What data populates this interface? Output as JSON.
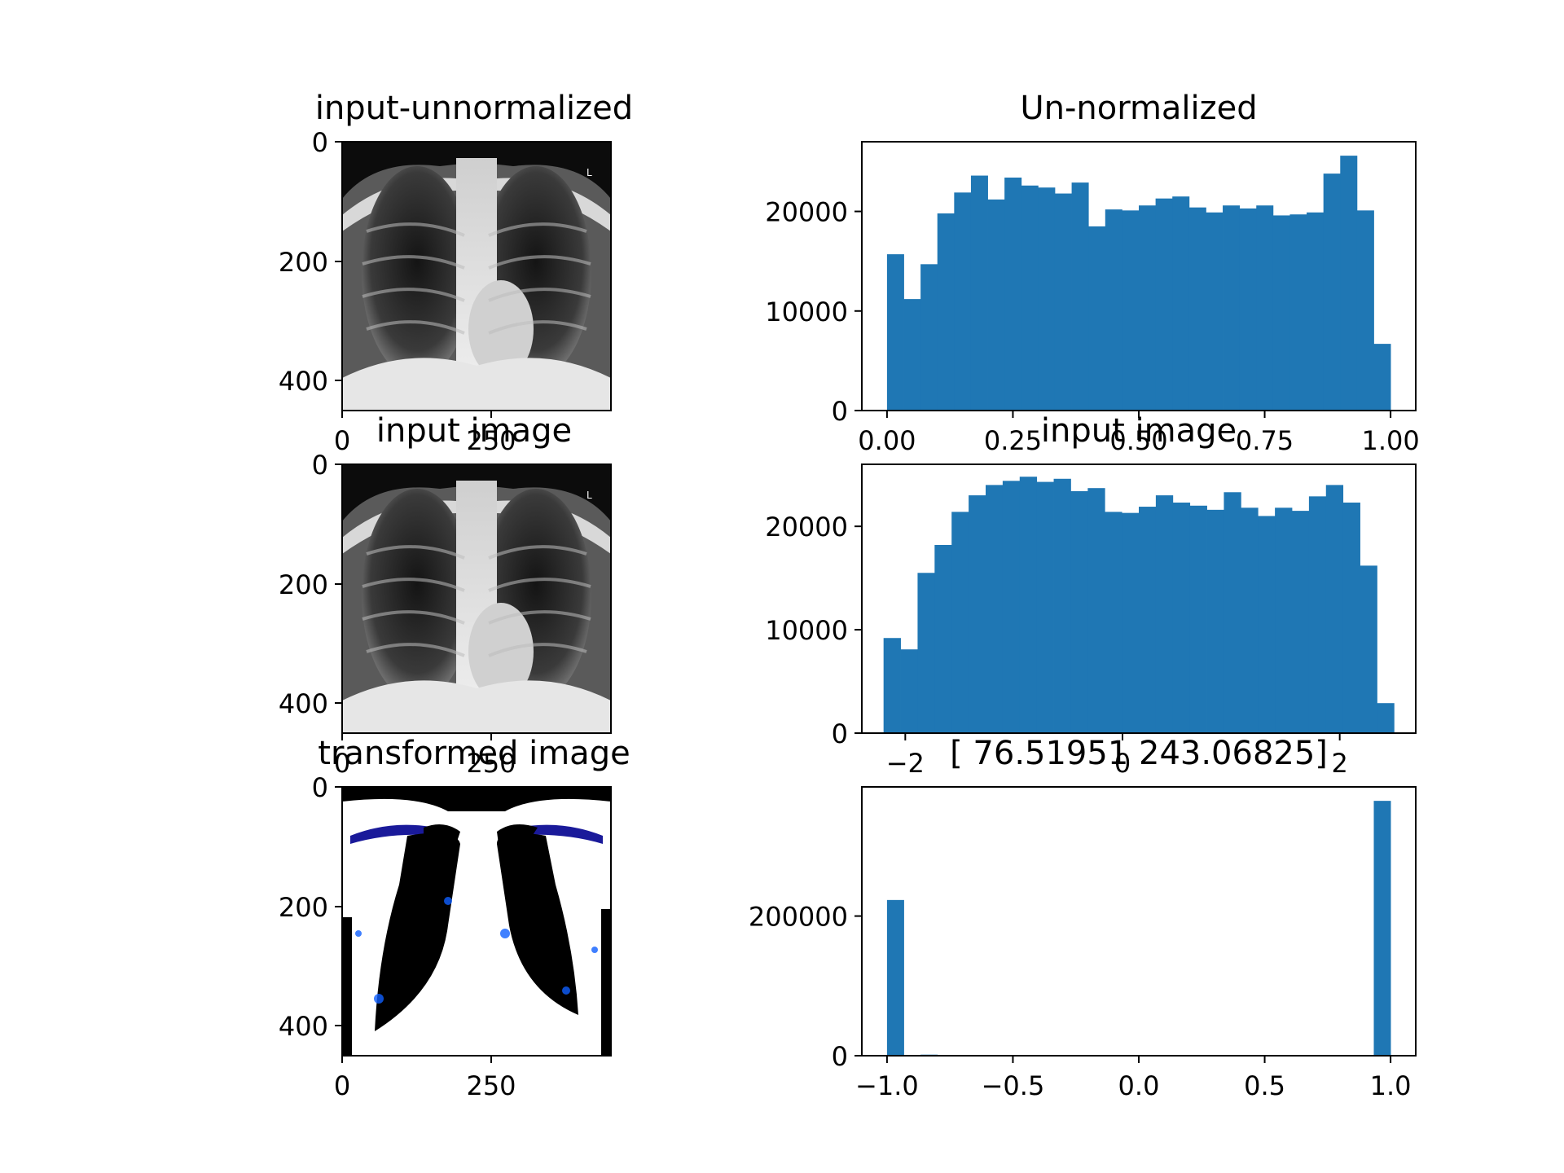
{
  "figure": {
    "bar_color": "#1f77b4"
  },
  "chart_data": [
    {
      "type": "image",
      "title": "input-unnormalized",
      "image": "chest-xray-grayscale",
      "xlim": [
        0,
        450
      ],
      "ylim": [
        450,
        0
      ],
      "xticks": [
        0,
        250
      ],
      "yticks": [
        0,
        200,
        400
      ],
      "xtick_labels": [
        "0",
        "250"
      ],
      "ytick_labels": [
        "0",
        "200",
        "400"
      ]
    },
    {
      "type": "bar",
      "title": "Un-normalized",
      "xlim": [
        -0.05,
        1.05
      ],
      "ylim": [
        0,
        27000
      ],
      "xticks": [
        0.0,
        0.25,
        0.5,
        0.75,
        1.0
      ],
      "xtick_labels": [
        "0.00",
        "0.25",
        "0.50",
        "0.75",
        "1.00"
      ],
      "yticks": [
        0,
        10000,
        20000
      ],
      "ytick_labels": [
        "0",
        "10000",
        "20000"
      ],
      "bin_range": [
        0,
        1
      ],
      "values": [
        15700,
        11200,
        14700,
        19800,
        21900,
        23600,
        21200,
        23400,
        22600,
        22400,
        21800,
        22900,
        18500,
        20200,
        20100,
        20600,
        21300,
        21500,
        20400,
        19900,
        20600,
        20300,
        20600,
        19600,
        19700,
        19900,
        23800,
        25600,
        20100,
        6700
      ]
    },
    {
      "type": "image",
      "title": "input image",
      "image": "chest-xray-grayscale",
      "xlim": [
        0,
        450
      ],
      "ylim": [
        450,
        0
      ],
      "xticks": [
        0,
        250
      ],
      "yticks": [
        0,
        200,
        400
      ],
      "xtick_labels": [
        "0",
        "250"
      ],
      "ytick_labels": [
        "0",
        "200",
        "400"
      ]
    },
    {
      "type": "bar",
      "title": "input image",
      "xlim": [
        -2.4,
        2.7
      ],
      "ylim": [
        0,
        26000
      ],
      "xticks": [
        -2,
        0,
        2
      ],
      "xtick_labels": [
        "−2",
        "0",
        "2"
      ],
      "yticks": [
        0,
        10000,
        20000
      ],
      "ytick_labels": [
        "0",
        "10000",
        "20000"
      ],
      "bin_range": [
        -2.2,
        2.5
      ],
      "values": [
        9200,
        8100,
        15500,
        18200,
        21400,
        23000,
        24000,
        24400,
        24800,
        24300,
        24600,
        23400,
        23700,
        21400,
        21300,
        21900,
        23000,
        22300,
        22000,
        21600,
        23300,
        21800,
        21000,
        21800,
        21500,
        22900,
        24000,
        22300,
        16200,
        2900
      ]
    },
    {
      "type": "image",
      "title": "transformed image",
      "image": "chest-xray-thresholded-blue-white",
      "xlim": [
        0,
        450
      ],
      "ylim": [
        450,
        0
      ],
      "xticks": [
        0,
        250
      ],
      "yticks": [
        0,
        200,
        400
      ],
      "xtick_labels": [
        "0",
        "250"
      ],
      "ytick_labels": [
        "0",
        "200",
        "400"
      ]
    },
    {
      "type": "bar",
      "title": "[ 76.51951 243.06825]",
      "xlim": [
        -1.1,
        1.1
      ],
      "ylim": [
        0,
        385000
      ],
      "xticks": [
        -1.0,
        -0.5,
        0.0,
        0.5,
        1.0
      ],
      "xtick_labels": [
        "−1.0",
        "−0.5",
        "0.0",
        "0.5",
        "1.0"
      ],
      "yticks": [
        0,
        200000
      ],
      "ytick_labels": [
        "0",
        "200000"
      ],
      "bin_range": [
        -1,
        1
      ],
      "values": [
        223000,
        0,
        1500,
        0,
        0,
        0,
        0,
        0,
        0,
        0,
        0,
        0,
        0,
        0,
        0,
        0,
        0,
        0,
        0,
        0,
        0,
        0,
        0,
        0,
        0,
        0,
        0,
        0,
        0,
        365000
      ]
    }
  ]
}
